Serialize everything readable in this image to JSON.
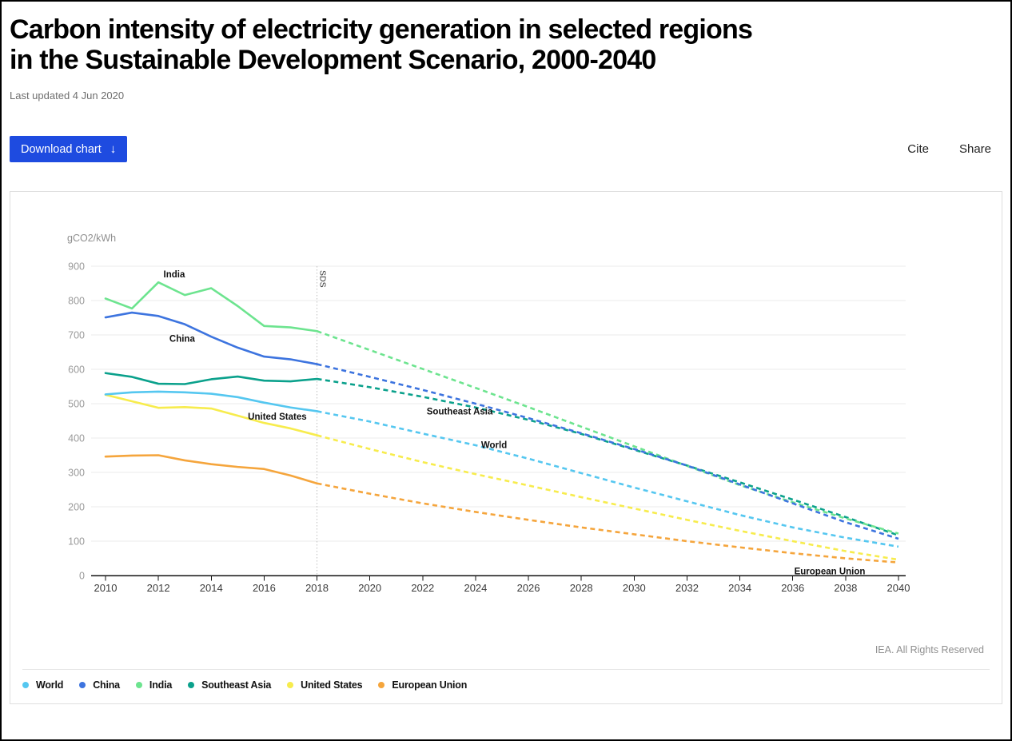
{
  "header": {
    "title": "Carbon intensity of electricity generation in selected regions in the Sustainable Development Scenario, 2000-2040",
    "last_updated": "Last updated 4 Jun 2020",
    "download_label": "Download chart",
    "download_arrow": "↓",
    "cite_label": "Cite",
    "share_label": "Share"
  },
  "chart_data": {
    "type": "line",
    "ylabel": "gCO2/kWh",
    "xlabel": "",
    "xlim": [
      2010,
      2040
    ],
    "ylim": [
      0,
      900
    ],
    "grid": true,
    "legend_position": "bottom",
    "source": "IEA. All Rights Reserved",
    "y_ticks": [
      0,
      100,
      200,
      300,
      400,
      500,
      600,
      700,
      800,
      900
    ],
    "x_ticks": [
      2010,
      2012,
      2014,
      2016,
      2018,
      2020,
      2022,
      2024,
      2026,
      2028,
      2030,
      2032,
      2034,
      2036,
      2038,
      2040
    ],
    "sds_marker": {
      "label": "SDS",
      "year": 2018
    },
    "years_historical": [
      2010,
      2011,
      2012,
      2013,
      2014,
      2015,
      2016,
      2017,
      2018
    ],
    "years_projection": [
      2018,
      2020,
      2022,
      2024,
      2026,
      2028,
      2030,
      2032,
      2034,
      2036,
      2038,
      2040
    ],
    "series": [
      {
        "name": "World",
        "color": "#55c7f0",
        "historical": [
          527,
          533,
          535,
          533,
          529,
          519,
          503,
          489,
          478
        ],
        "projection": [
          478,
          448,
          413,
          379,
          340,
          298,
          256,
          216,
          176,
          140,
          110,
          84
        ]
      },
      {
        "name": "China",
        "color": "#3d74df",
        "historical": [
          751,
          765,
          755,
          731,
          695,
          663,
          637,
          629,
          615
        ],
        "projection": [
          615,
          578,
          540,
          500,
          458,
          414,
          368,
          320,
          265,
          210,
          155,
          107
        ]
      },
      {
        "name": "India",
        "color": "#6de48f",
        "historical": [
          806,
          777,
          853,
          816,
          836,
          784,
          726,
          722,
          711
        ],
        "projection": [
          711,
          656,
          601,
          546,
          490,
          433,
          376,
          319,
          263,
          213,
          166,
          122
        ]
      },
      {
        "name": "Southeast Asia",
        "color": "#0ba18c",
        "historical": [
          589,
          578,
          558,
          557,
          571,
          579,
          567,
          565,
          572
        ],
        "projection": [
          572,
          548,
          520,
          489,
          453,
          412,
          366,
          320,
          271,
          221,
          170,
          117
        ]
      },
      {
        "name": "United States",
        "color": "#f7ec4d",
        "historical": [
          526,
          507,
          488,
          490,
          486,
          465,
          444,
          428,
          408
        ],
        "projection": [
          408,
          368,
          330,
          295,
          262,
          228,
          195,
          162,
          130,
          100,
          71,
          46
        ]
      },
      {
        "name": "European Union",
        "color": "#f5a53c",
        "historical": [
          346,
          349,
          350,
          335,
          324,
          316,
          310,
          291,
          268
        ],
        "projection": [
          268,
          238,
          210,
          185,
          162,
          140,
          120,
          100,
          82,
          65,
          50,
          38
        ]
      }
    ],
    "annotations": [
      {
        "text": "India",
        "year": 2012.6,
        "value": 877
      },
      {
        "text": "China",
        "year": 2012.9,
        "value": 690
      },
      {
        "text": "United States",
        "year": 2016.5,
        "value": 463
      },
      {
        "text": "Southeast Asia",
        "year": 2023.4,
        "value": 478
      },
      {
        "text": "World",
        "year": 2024.7,
        "value": 380
      },
      {
        "text": "European Union",
        "year": 2037.4,
        "value": 13
      }
    ]
  }
}
